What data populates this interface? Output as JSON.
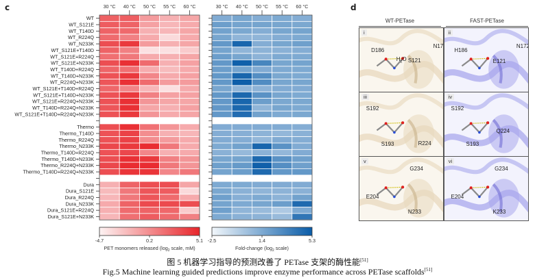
{
  "panels": {
    "c": "c",
    "d": "d"
  },
  "chart_data": [
    {
      "type": "heatmap",
      "title": "",
      "columns": [
        "30 °C",
        "40 °C",
        "50 °C",
        "55 °C",
        "60 °C"
      ],
      "groups": [
        {
          "rows": [
            "WT",
            "WT_S121E",
            "WT_T140D",
            "WT_R224Q",
            "WT_N233K",
            "WT_S121E+T140D",
            "WT_S121E+R224Q",
            "WT_S121E+N233K",
            "WT_T140D+R224Q",
            "WT_T140D+N233K",
            "WT_R224Q+N233K",
            "WT_S121E+T140D+R224Q",
            "WT_S121E+T140D+N233K",
            "WT_S121E+R224Q+N233K",
            "WT_T140D+R224Q+N233K",
            "WT_S121E+T140D+R224Q+N233K"
          ],
          "values": [
            [
              2.3,
              2.4,
              -0.5,
              -1.5,
              -1.0
            ],
            [
              2.5,
              2.2,
              -0.8,
              -1.8,
              -1.2
            ],
            [
              2.2,
              1.9,
              -1.5,
              -1.8,
              -1.0
            ],
            [
              1.8,
              0.8,
              -1.2,
              -3.5,
              -1.2
            ],
            [
              3.2,
              4.2,
              -0.5,
              -1.5,
              -1.0
            ],
            [
              2.2,
              0.8,
              -3.8,
              -3.8,
              -2.8
            ],
            [
              1.6,
              1.2,
              -1.2,
              -1.5,
              -1.0
            ],
            [
              3.2,
              4.6,
              1.8,
              -1.5,
              -0.8
            ],
            [
              2.1,
              1.6,
              -1.3,
              -2.0,
              -1.2
            ],
            [
              3.0,
              4.2,
              0.5,
              -1.2,
              -0.8
            ],
            [
              2.8,
              4.6,
              1.8,
              -0.5,
              -0.5
            ],
            [
              2.0,
              0.6,
              -1.8,
              -3.8,
              -1.2
            ],
            [
              3.0,
              4.2,
              0.8,
              -0.8,
              -0.8
            ],
            [
              3.0,
              4.6,
              -0.2,
              -1.0,
              -1.0
            ],
            [
              2.8,
              4.6,
              -1.0,
              -1.5,
              -0.8
            ],
            [
              3.0,
              4.2,
              -0.2,
              -1.2,
              -1.0
            ]
          ]
        },
        {
          "rows": [
            "Thermo",
            "Thermo_T140D",
            "Thermo_R224Q",
            "Thermo_N233K",
            "Thermo_T140D+R224Q",
            "Thermo_T140D+N233K",
            "Thermo_R224Q+N233K",
            "Thermo_T140D+R224Q+N233K"
          ],
          "values": [
            [
              3.2,
              4.6,
              1.5,
              -0.2,
              -1.2
            ],
            [
              3.0,
              3.8,
              0.2,
              -1.5,
              -1.8
            ],
            [
              3.0,
              3.8,
              0.2,
              -0.5,
              -1.2
            ],
            [
              3.5,
              4.2,
              4.8,
              1.2,
              -1.2
            ],
            [
              3.0,
              3.5,
              0.5,
              -1.5,
              -1.2
            ],
            [
              3.2,
              4.6,
              4.2,
              0.8,
              -0.2
            ],
            [
              3.5,
              4.8,
              4.8,
              1.2,
              -0.2
            ],
            [
              3.2,
              4.4,
              4.4,
              0.5,
              1.2
            ]
          ]
        },
        {
          "rows": [
            "Dura",
            "Dura_S121E",
            "Dura_R224Q",
            "Dura_N233K",
            "Dura_S121E+R224Q",
            "Dura_S121E+N233K"
          ],
          "values": [
            [
              -1.5,
              2.2,
              3.2,
              3.2,
              -1.0
            ],
            [
              -2.0,
              1.2,
              2.8,
              2.5,
              -3.5
            ],
            [
              -1.8,
              1.2,
              2.8,
              1.8,
              -1.2
            ],
            [
              -1.2,
              2.2,
              3.4,
              3.4,
              3.2
            ],
            [
              -1.5,
              1.8,
              2.2,
              2.0,
              -2.8
            ],
            [
              -1.8,
              1.6,
              2.5,
              1.8,
              0.8
            ]
          ]
        }
      ],
      "colorbar": {
        "min": -4.7,
        "mid": 0.2,
        "max": 5.1,
        "ticks": [
          "-4.7",
          "0.2",
          "5.1"
        ],
        "label": "PET monomers released (log",
        "label_sub": "2",
        "label_tail": " scale, mM)",
        "color_low": "#fdf3f3",
        "color_high": "#e8262b"
      }
    },
    {
      "type": "heatmap",
      "title": "",
      "columns": [
        "30 °C",
        "40 °C",
        "50 °C",
        "55 °C",
        "60 °C"
      ],
      "groups": [
        {
          "values": [
            [
              1.3,
              1.6,
              1.2,
              1.4,
              1.2
            ],
            [
              2.0,
              1.7,
              1.7,
              1.6,
              1.5
            ],
            [
              1.8,
              1.5,
              1.2,
              1.6,
              1.7
            ],
            [
              1.6,
              0.8,
              0.8,
              1.2,
              1.4
            ],
            [
              2.3,
              4.8,
              1.2,
              1.6,
              1.9
            ],
            [
              1.7,
              0.8,
              0.9,
              1.0,
              1.2
            ],
            [
              2.0,
              1.6,
              0.9,
              1.4,
              1.4
            ],
            [
              2.3,
              5.1,
              3.2,
              1.6,
              1.7
            ],
            [
              2.0,
              1.7,
              1.3,
              1.4,
              1.4
            ],
            [
              2.3,
              4.8,
              2.8,
              1.5,
              1.4
            ],
            [
              2.3,
              5.2,
              2.9,
              1.6,
              1.6
            ],
            [
              1.6,
              0.8,
              0.9,
              1.3,
              1.3
            ],
            [
              2.3,
              4.7,
              2.6,
              1.6,
              1.4
            ],
            [
              2.3,
              4.8,
              2.0,
              1.5,
              1.5
            ],
            [
              2.3,
              4.7,
              0.8,
              1.6,
              1.4
            ],
            [
              2.3,
              4.5,
              1.8,
              1.4,
              1.5
            ]
          ]
        },
        {
          "values": [
            [
              1.3,
              1.3,
              1.3,
              1.3,
              1.2
            ],
            [
              1.2,
              1.1,
              0.9,
              0.7,
              1.0
            ],
            [
              1.3,
              1.2,
              0.7,
              1.3,
              1.2
            ],
            [
              1.4,
              1.8,
              4.8,
              2.6,
              1.3
            ],
            [
              1.0,
              0.6,
              1.0,
              0.7,
              1.3
            ],
            [
              1.6,
              1.7,
              4.7,
              2.6,
              1.9
            ],
            [
              1.9,
              2.2,
              5.1,
              2.8,
              1.9
            ],
            [
              1.7,
              2.0,
              4.6,
              2.3,
              2.3
            ]
          ]
        },
        {
          "values": [
            [
              1.4,
              1.4,
              1.3,
              1.3,
              1.3
            ],
            [
              1.5,
              1.0,
              0.8,
              0.9,
              1.0
            ],
            [
              1.9,
              1.1,
              1.4,
              0.9,
              1.8
            ],
            [
              1.7,
              1.4,
              1.6,
              2.0,
              4.6
            ],
            [
              1.9,
              0.8,
              0.5,
              -0.2,
              1.4
            ],
            [
              1.4,
              1.0,
              0.9,
              0.5,
              4.0
            ]
          ]
        }
      ],
      "colorbar": {
        "min": -2.5,
        "mid": 1.4,
        "max": 5.3,
        "ticks": [
          "-2.5",
          "1.4",
          "5.3"
        ],
        "label": "Fold-change (log",
        "label_sub": "2",
        "label_tail": " scale)",
        "color_low": "#f2f7fb",
        "color_high": "#0a5ca8"
      }
    }
  ],
  "panel_d": {
    "columns": [
      "WT-PETase",
      "FAST-PETase"
    ],
    "cells": [
      {
        "roman": "i",
        "variant": "wt",
        "labels": [
          "D186",
          "H2O",
          "S121",
          "N172"
        ]
      },
      {
        "roman": "ii",
        "variant": "fast",
        "labels": [
          "H186",
          "E121",
          "N172"
        ]
      },
      {
        "roman": "iii",
        "variant": "wt",
        "labels": [
          "S192",
          "S193",
          "R224"
        ]
      },
      {
        "roman": "iv",
        "variant": "fast",
        "labels": [
          "S192",
          "S193",
          "Q224"
        ]
      },
      {
        "roman": "v",
        "variant": "wt",
        "labels": [
          "G234",
          "E204",
          "N233"
        ]
      },
      {
        "roman": "vi",
        "variant": "fast",
        "labels": [
          "G234",
          "E204",
          "K233"
        ]
      }
    ]
  },
  "caption": {
    "zh": "图 5  机器学习指导的预测改善了 PETase 支架的酶性能",
    "zh_ref": "[51]",
    "en": "Fig.5 Machine learning guided predictions improve enzyme performance across PETase scaffolds",
    "en_ref": "[51]"
  }
}
